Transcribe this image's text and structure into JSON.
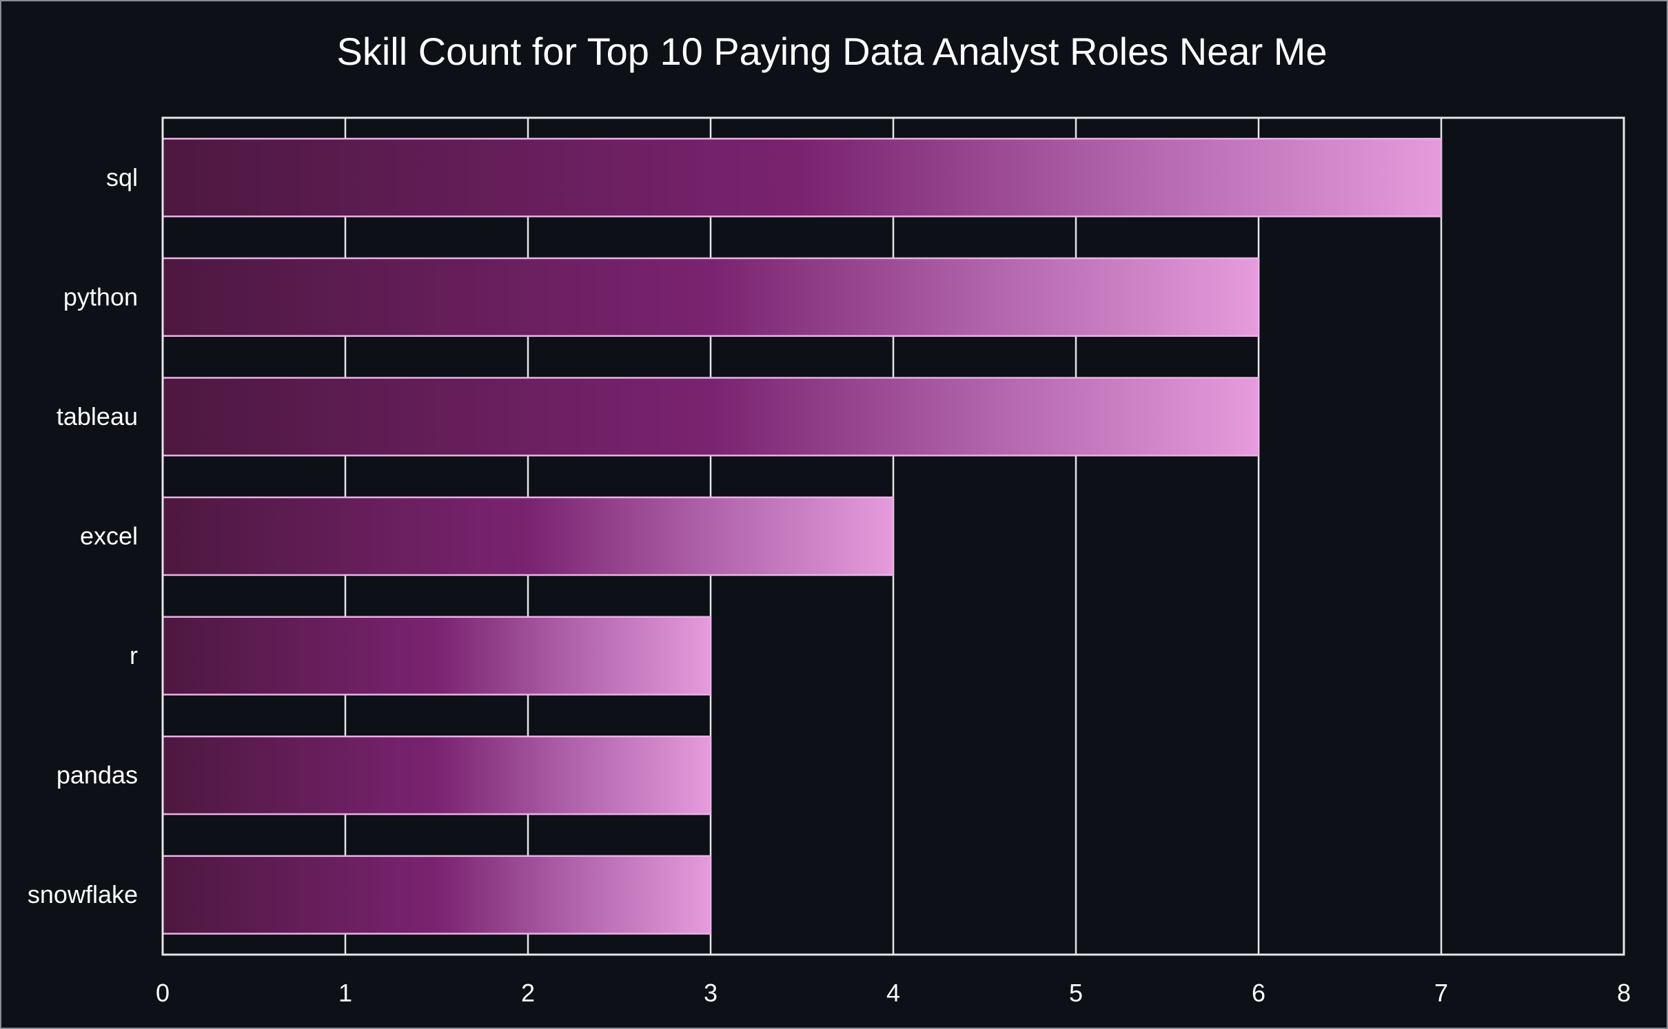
{
  "chart_data": {
    "type": "bar",
    "orientation": "horizontal",
    "title": "Skill Count for Top 10 Paying Data Analyst Roles Near Me",
    "xlabel": "",
    "ylabel": "",
    "categories": [
      "sql",
      "python",
      "tableau",
      "excel",
      "r",
      "pandas",
      "snowflake"
    ],
    "values": [
      7,
      6,
      6,
      4,
      3,
      3,
      3
    ],
    "xlim": [
      0,
      8
    ],
    "xticks": [
      "0",
      "1",
      "2",
      "3",
      "4",
      "5",
      "6",
      "7",
      "8"
    ],
    "grid": true,
    "colors": {
      "background": "#0d1017",
      "grid": "#e6e6e6",
      "text": "#ffffff",
      "bar_gradient": [
        "#4d1840",
        "#7a2370",
        "#b063aa",
        "#e59bdc"
      ],
      "bar_edge": "#e9b3e6"
    }
  }
}
